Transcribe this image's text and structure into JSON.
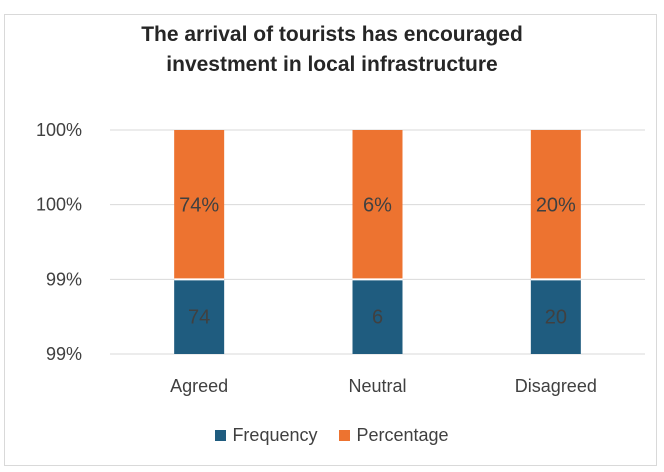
{
  "chart_data": {
    "type": "bar",
    "stacked": true,
    "title_lines": [
      "The arrival of tourists has encouraged",
      "investment in local infrastructure"
    ],
    "categories": [
      "Agreed",
      "Neutral",
      "Disagreed"
    ],
    "series": [
      {
        "name": "Frequency",
        "values": [
          74,
          6,
          20
        ],
        "labels": [
          "74",
          "6",
          "20"
        ],
        "color": "#1f5c7f"
      },
      {
        "name": "Percentage",
        "values": [
          0.74,
          0.06,
          0.2
        ],
        "labels": [
          "74%",
          "6%",
          "20%"
        ],
        "color": "#ed7330"
      }
    ],
    "y_tick_labels": [
      "99%",
      "99%",
      "100%",
      "100%"
    ],
    "gridlines": true,
    "legend_position": "bottom"
  }
}
